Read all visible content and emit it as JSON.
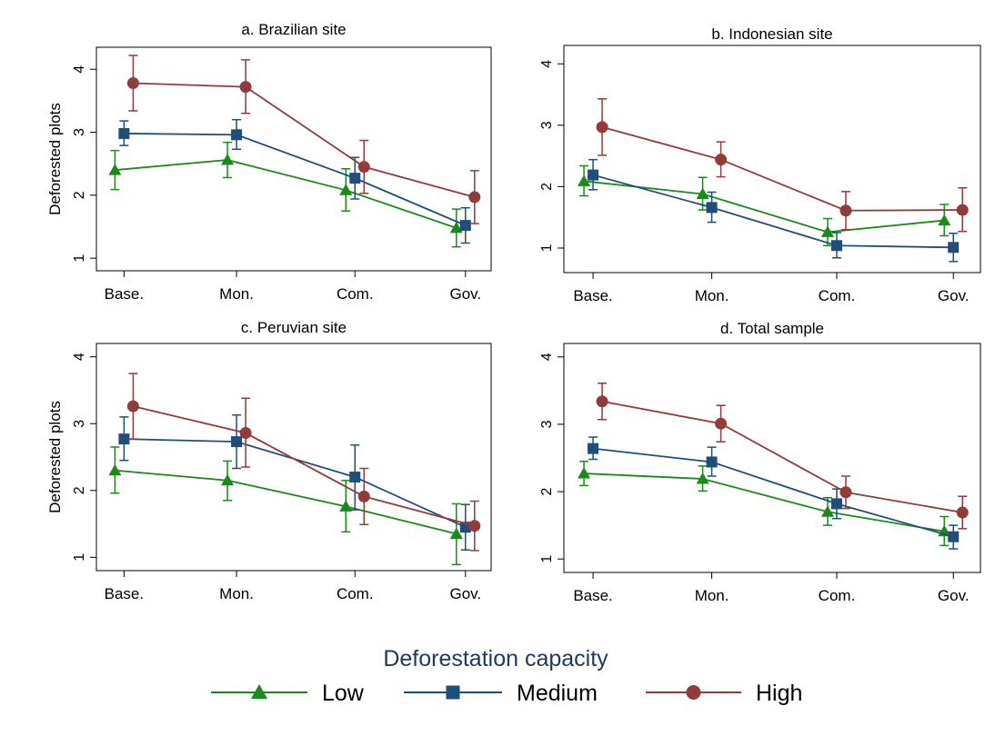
{
  "chart_data": [
    {
      "type": "line",
      "title": "a. Brazilian site",
      "ylabel": "Deforested plots",
      "xlabel": "",
      "categories": [
        "Base.",
        "Mon.",
        "Com.",
        "Gov."
      ],
      "yticks": [
        1,
        2,
        3,
        4
      ],
      "ylim": [
        0.8,
        4.35
      ],
      "series": [
        {
          "name": "Low",
          "values": [
            2.4,
            2.56,
            2.08,
            1.48
          ],
          "ci_low": [
            2.09,
            2.28,
            1.75,
            1.18
          ],
          "ci_high": [
            2.71,
            2.84,
            2.42,
            1.78
          ]
        },
        {
          "name": "Medium",
          "values": [
            2.98,
            2.96,
            2.27,
            1.52
          ],
          "ci_low": [
            2.79,
            2.73,
            1.94,
            1.24
          ],
          "ci_high": [
            3.18,
            3.2,
            2.6,
            1.8
          ]
        },
        {
          "name": "High",
          "values": [
            3.78,
            3.72,
            2.45,
            1.97
          ],
          "ci_low": [
            3.34,
            3.3,
            2.03,
            1.55
          ],
          "ci_high": [
            4.22,
            4.15,
            2.87,
            2.39
          ]
        }
      ]
    },
    {
      "type": "line",
      "title": "b. Indonesian site",
      "ylabel": "",
      "xlabel": "",
      "categories": [
        "Base.",
        "Mon.",
        "Com.",
        "Gov."
      ],
      "yticks": [
        1,
        2,
        3,
        4
      ],
      "ylim": [
        0.6,
        4.3
      ],
      "series": [
        {
          "name": "Low",
          "values": [
            2.09,
            1.88,
            1.26,
            1.45
          ],
          "ci_low": [
            1.85,
            1.62,
            1.04,
            1.2
          ],
          "ci_high": [
            2.34,
            2.15,
            1.48,
            1.71
          ]
        },
        {
          "name": "Medium",
          "values": [
            2.19,
            1.66,
            1.04,
            1.01
          ],
          "ci_low": [
            1.95,
            1.42,
            0.84,
            0.78
          ],
          "ci_high": [
            2.44,
            1.91,
            1.25,
            1.24
          ]
        },
        {
          "name": "High",
          "values": [
            2.97,
            2.44,
            1.61,
            1.62
          ],
          "ci_low": [
            2.51,
            2.16,
            1.3,
            1.27
          ],
          "ci_high": [
            3.43,
            2.73,
            1.92,
            1.98
          ]
        }
      ]
    },
    {
      "type": "line",
      "title": "c. Peruvian site",
      "ylabel": "Deforested plots",
      "xlabel": "",
      "categories": [
        "Base.",
        "Mon.",
        "Com.",
        "Gov."
      ],
      "yticks": [
        1,
        2,
        3,
        4
      ],
      "ylim": [
        0.8,
        4.2
      ],
      "series": [
        {
          "name": "Low",
          "values": [
            2.3,
            2.15,
            1.76,
            1.35
          ],
          "ci_low": [
            1.96,
            1.85,
            1.38,
            0.89
          ],
          "ci_high": [
            2.65,
            2.44,
            2.15,
            1.8
          ]
        },
        {
          "name": "Medium",
          "values": [
            2.77,
            2.73,
            2.2,
            1.45
          ],
          "ci_low": [
            2.45,
            2.33,
            1.71,
            1.11
          ],
          "ci_high": [
            3.1,
            3.13,
            2.68,
            1.79
          ]
        },
        {
          "name": "High",
          "values": [
            3.26,
            2.86,
            1.91,
            1.47
          ],
          "ci_low": [
            2.77,
            2.35,
            1.49,
            1.1
          ],
          "ci_high": [
            3.75,
            3.38,
            2.33,
            1.84
          ]
        }
      ]
    },
    {
      "type": "line",
      "title": "d. Total sample",
      "ylabel": "",
      "xlabel": "",
      "categories": [
        "Base.",
        "Mon.",
        "Com.",
        "Gov."
      ],
      "yticks": [
        1,
        2,
        3,
        4
      ],
      "ylim": [
        0.8,
        4.2
      ],
      "series": [
        {
          "name": "Low",
          "values": [
            2.27,
            2.19,
            1.7,
            1.41
          ],
          "ci_low": [
            2.09,
            2.01,
            1.5,
            1.2
          ],
          "ci_high": [
            2.45,
            2.38,
            1.91,
            1.63
          ]
        },
        {
          "name": "Medium",
          "values": [
            2.64,
            2.44,
            1.82,
            1.33
          ],
          "ci_low": [
            2.48,
            2.23,
            1.6,
            1.15
          ],
          "ci_high": [
            2.81,
            2.66,
            2.04,
            1.5
          ]
        },
        {
          "name": "High",
          "values": [
            3.34,
            3.01,
            1.99,
            1.69
          ],
          "ci_low": [
            3.07,
            2.74,
            1.75,
            1.45
          ],
          "ci_high": [
            3.61,
            3.28,
            2.23,
            1.93
          ]
        }
      ]
    }
  ],
  "legend": {
    "title": "Deforestation capacity",
    "items": [
      {
        "label": "Low",
        "color": "#1a8a1a",
        "marker": "triangle"
      },
      {
        "label": "Medium",
        "color": "#1f4e79",
        "marker": "square"
      },
      {
        "label": "High",
        "color": "#913b3b",
        "marker": "circle"
      }
    ]
  },
  "colors": {
    "Low": "#1a8a1a",
    "Medium": "#1f4e79",
    "High": "#913b3b",
    "legend_title": "#1f3a60",
    "frame": "#000000"
  }
}
